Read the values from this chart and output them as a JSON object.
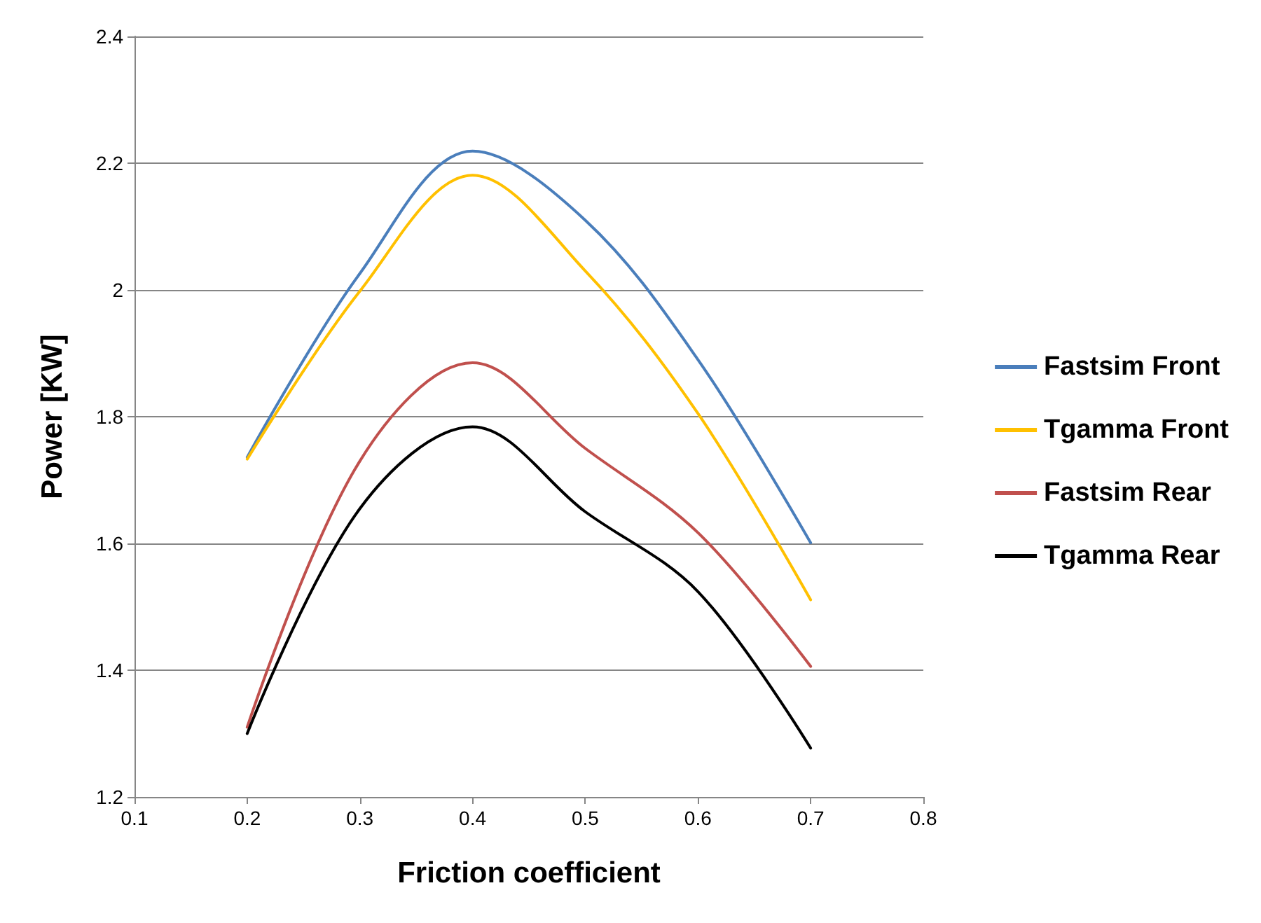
{
  "chart_data": {
    "type": "line",
    "xlabel": "Friction coefficient",
    "ylabel": "Power [KW]",
    "x": [
      0.2,
      0.3,
      0.4,
      0.5,
      0.6,
      0.7
    ],
    "series": [
      {
        "name": "Fastsim Front",
        "color": "#4a7ebb",
        "values": [
          1.736,
          2.026,
          2.219,
          2.11,
          1.89,
          1.601
        ]
      },
      {
        "name": "Tgamma Front",
        "color": "#ffc000",
        "values": [
          1.733,
          1.998,
          2.181,
          2.03,
          1.805,
          1.511
        ]
      },
      {
        "name": "Fastsim Rear",
        "color": "#c0504d",
        "values": [
          1.31,
          1.73,
          1.885,
          1.75,
          1.617,
          1.406
        ]
      },
      {
        "name": "Tgamma Rear",
        "color": "#000000",
        "values": [
          1.3,
          1.655,
          1.784,
          1.65,
          1.524,
          1.277
        ]
      }
    ],
    "xlim": [
      0.1,
      0.8
    ],
    "xticks": [
      0.1,
      0.2,
      0.3,
      0.4,
      0.5,
      0.6,
      0.7,
      0.8
    ],
    "ylim": [
      1.2,
      2.4
    ],
    "yticks": [
      1.2,
      1.4,
      1.6,
      1.8,
      2,
      2.2,
      2.4
    ],
    "grid": "y",
    "legend": "right",
    "marker": "none",
    "line_style": "solid"
  }
}
